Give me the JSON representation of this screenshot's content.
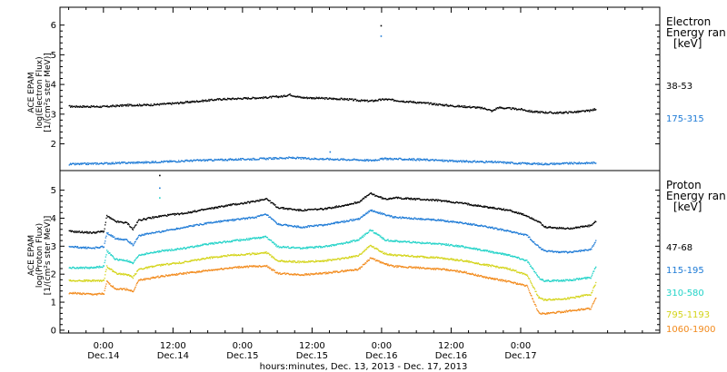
{
  "chart_data": [
    {
      "type": "scatter",
      "panel": "electron",
      "ylabel": [
        "ACE EPAM",
        "log(Electron Flux)",
        "[1/(cm²s ster MeV)]"
      ],
      "ylim": [
        1.1,
        6.6
      ],
      "yticks": [
        "2",
        "3",
        "4",
        "5",
        "6"
      ],
      "legend_title": [
        "Electron",
        "Energy ran",
        "[keV]"
      ],
      "legend_placement": "right",
      "series": [
        {
          "name": "38-53",
          "color": "#000000",
          "points": [
            [
              -6,
              3.28
            ],
            [
              0,
              3.27
            ],
            [
              4,
              3.32
            ],
            [
              8,
              3.33
            ],
            [
              12,
              3.38
            ],
            [
              16,
              3.45
            ],
            [
              20,
              3.52
            ],
            [
              24,
              3.55
            ],
            [
              28,
              3.58
            ],
            [
              31,
              3.62
            ],
            [
              32,
              3.68
            ],
            [
              34,
              3.58
            ],
            [
              38,
              3.55
            ],
            [
              42,
              3.52
            ],
            [
              44,
              3.48
            ],
            [
              46,
              3.46
            ],
            [
              48.5,
              3.52
            ],
            [
              52,
              3.45
            ],
            [
              56,
              3.38
            ],
            [
              60,
              3.3
            ],
            [
              64,
              3.25
            ],
            [
              66,
              3.2
            ],
            [
              67,
              3.12
            ],
            [
              68,
              3.24
            ],
            [
              72,
              3.18
            ],
            [
              74,
              3.1
            ],
            [
              78,
              3.06
            ],
            [
              82,
              3.1
            ],
            [
              84,
              3.14
            ],
            [
              85,
              3.2
            ]
          ]
        },
        {
          "name": "175-315",
          "color": "#1e7bd6",
          "points": [
            [
              -6,
              1.33
            ],
            [
              0,
              1.36
            ],
            [
              4,
              1.38
            ],
            [
              8,
              1.4
            ],
            [
              12,
              1.43
            ],
            [
              16,
              1.46
            ],
            [
              20,
              1.48
            ],
            [
              24,
              1.5
            ],
            [
              28,
              1.52
            ],
            [
              32,
              1.55
            ],
            [
              36,
              1.52
            ],
            [
              40,
              1.5
            ],
            [
              44,
              1.48
            ],
            [
              46,
              1.46
            ],
            [
              48.5,
              1.52
            ],
            [
              52,
              1.5
            ],
            [
              56,
              1.48
            ],
            [
              60,
              1.44
            ],
            [
              64,
              1.42
            ],
            [
              68,
              1.4
            ],
            [
              72,
              1.36
            ],
            [
              76,
              1.34
            ],
            [
              80,
              1.36
            ],
            [
              85,
              1.38
            ]
          ]
        }
      ],
      "outliers": [
        {
          "x": 47.8,
          "y": 6.0,
          "color": "#000000"
        },
        {
          "x": 47.8,
          "y": 5.65,
          "color": "#1e7bd6"
        },
        {
          "x": 39,
          "y": 1.75,
          "color": "#1e7bd6"
        }
      ]
    },
    {
      "type": "scatter",
      "panel": "proton",
      "ylabel": [
        "ACE EPAM",
        "log(Proton Flux)",
        "[1/(cm²s ster MeV)]"
      ],
      "ylim": [
        -0.1,
        5.7
      ],
      "yticks": [
        "0",
        "1",
        "2",
        "3",
        "4",
        "5"
      ],
      "legend_title": [
        "Proton",
        "Energy ran",
        "[keV]"
      ],
      "legend_placement": "right",
      "series": [
        {
          "name": "47-68",
          "color": "#000000",
          "points": [
            [
              -6,
              3.55
            ],
            [
              -2,
              3.5
            ],
            [
              0,
              3.55
            ],
            [
              0.5,
              4.1
            ],
            [
              2,
              3.9
            ],
            [
              4,
              3.85
            ],
            [
              5,
              3.62
            ],
            [
              6,
              3.95
            ],
            [
              10,
              4.1
            ],
            [
              14,
              4.2
            ],
            [
              18,
              4.35
            ],
            [
              22,
              4.5
            ],
            [
              24,
              4.55
            ],
            [
              26,
              4.62
            ],
            [
              28,
              4.72
            ],
            [
              30,
              4.4
            ],
            [
              34,
              4.3
            ],
            [
              38,
              4.35
            ],
            [
              42,
              4.5
            ],
            [
              44,
              4.6
            ],
            [
              46,
              4.9
            ],
            [
              48.5,
              4.7
            ],
            [
              50,
              4.75
            ],
            [
              54,
              4.7
            ],
            [
              58,
              4.65
            ],
            [
              62,
              4.55
            ],
            [
              66,
              4.42
            ],
            [
              70,
              4.3
            ],
            [
              73,
              4.1
            ],
            [
              75,
              3.9
            ],
            [
              76,
              3.7
            ],
            [
              80,
              3.65
            ],
            [
              84,
              3.75
            ],
            [
              85,
              3.92
            ]
          ]
        },
        {
          "name": "115-195",
          "color": "#1e7bd6",
          "points": [
            [
              -6,
              3.0
            ],
            [
              -2,
              2.95
            ],
            [
              0,
              3.0
            ],
            [
              0.5,
              3.5
            ],
            [
              2,
              3.3
            ],
            [
              4,
              3.25
            ],
            [
              5,
              3.05
            ],
            [
              6,
              3.4
            ],
            [
              10,
              3.55
            ],
            [
              14,
              3.7
            ],
            [
              18,
              3.85
            ],
            [
              22,
              3.95
            ],
            [
              24,
              4.0
            ],
            [
              26,
              4.05
            ],
            [
              28,
              4.15
            ],
            [
              30,
              3.8
            ],
            [
              34,
              3.7
            ],
            [
              38,
              3.78
            ],
            [
              42,
              3.92
            ],
            [
              44,
              4.0
            ],
            [
              46,
              4.3
            ],
            [
              48.5,
              4.15
            ],
            [
              50,
              4.05
            ],
            [
              54,
              4.0
            ],
            [
              58,
              3.95
            ],
            [
              62,
              3.85
            ],
            [
              66,
              3.72
            ],
            [
              70,
              3.55
            ],
            [
              73,
              3.4
            ],
            [
              75,
              3.0
            ],
            [
              76,
              2.85
            ],
            [
              80,
              2.8
            ],
            [
              84,
              2.9
            ],
            [
              85,
              3.25
            ]
          ]
        },
        {
          "name": "310-580",
          "color": "#22d3c8",
          "points": [
            [
              -6,
              2.25
            ],
            [
              -2,
              2.25
            ],
            [
              0,
              2.3
            ],
            [
              0.5,
              2.85
            ],
            [
              2,
              2.55
            ],
            [
              4,
              2.5
            ],
            [
              5,
              2.4
            ],
            [
              6,
              2.7
            ],
            [
              10,
              2.85
            ],
            [
              14,
              2.95
            ],
            [
              18,
              3.1
            ],
            [
              22,
              3.2
            ],
            [
              24,
              3.25
            ],
            [
              26,
              3.3
            ],
            [
              28,
              3.35
            ],
            [
              30,
              3.0
            ],
            [
              34,
              2.95
            ],
            [
              38,
              3.0
            ],
            [
              42,
              3.15
            ],
            [
              44,
              3.25
            ],
            [
              46,
              3.6
            ],
            [
              48.5,
              3.25
            ],
            [
              50,
              3.2
            ],
            [
              54,
              3.15
            ],
            [
              58,
              3.1
            ],
            [
              62,
              3.0
            ],
            [
              66,
              2.85
            ],
            [
              70,
              2.7
            ],
            [
              73,
              2.5
            ],
            [
              75,
              1.9
            ],
            [
              76,
              1.78
            ],
            [
              80,
              1.8
            ],
            [
              84,
              1.9
            ],
            [
              85,
              2.35
            ]
          ]
        },
        {
          "name": "795-1193",
          "color": "#d4d41a",
          "points": [
            [
              -6,
              1.8
            ],
            [
              -2,
              1.78
            ],
            [
              0,
              1.8
            ],
            [
              0.5,
              2.3
            ],
            [
              2,
              2.05
            ],
            [
              4,
              2.0
            ],
            [
              5,
              1.9
            ],
            [
              6,
              2.2
            ],
            [
              10,
              2.35
            ],
            [
              14,
              2.45
            ],
            [
              18,
              2.6
            ],
            [
              22,
              2.7
            ],
            [
              24,
              2.72
            ],
            [
              26,
              2.75
            ],
            [
              28,
              2.8
            ],
            [
              30,
              2.5
            ],
            [
              34,
              2.45
            ],
            [
              38,
              2.5
            ],
            [
              42,
              2.6
            ],
            [
              44,
              2.7
            ],
            [
              46,
              3.05
            ],
            [
              48.5,
              2.75
            ],
            [
              50,
              2.7
            ],
            [
              54,
              2.65
            ],
            [
              58,
              2.6
            ],
            [
              62,
              2.5
            ],
            [
              66,
              2.35
            ],
            [
              70,
              2.2
            ],
            [
              73,
              2.0
            ],
            [
              75,
              1.2
            ],
            [
              76,
              1.1
            ],
            [
              80,
              1.15
            ],
            [
              84,
              1.3
            ],
            [
              85,
              1.75
            ]
          ]
        },
        {
          "name": "1060-1900",
          "color": "#f28a1c",
          "points": [
            [
              -6,
              1.35
            ],
            [
              -2,
              1.3
            ],
            [
              0,
              1.32
            ],
            [
              0.5,
              1.75
            ],
            [
              2,
              1.5
            ],
            [
              4,
              1.48
            ],
            [
              5,
              1.4
            ],
            [
              6,
              1.8
            ],
            [
              10,
              1.95
            ],
            [
              14,
              2.05
            ],
            [
              18,
              2.15
            ],
            [
              22,
              2.25
            ],
            [
              24,
              2.28
            ],
            [
              26,
              2.3
            ],
            [
              28,
              2.32
            ],
            [
              30,
              2.05
            ],
            [
              34,
              2.0
            ],
            [
              38,
              2.05
            ],
            [
              42,
              2.15
            ],
            [
              44,
              2.2
            ],
            [
              46,
              2.6
            ],
            [
              48.5,
              2.38
            ],
            [
              50,
              2.3
            ],
            [
              54,
              2.25
            ],
            [
              58,
              2.2
            ],
            [
              62,
              2.1
            ],
            [
              66,
              1.9
            ],
            [
              70,
              1.75
            ],
            [
              73,
              1.6
            ],
            [
              75,
              0.65
            ],
            [
              76,
              0.6
            ],
            [
              80,
              0.7
            ],
            [
              84,
              0.8
            ],
            [
              85,
              1.2
            ]
          ]
        }
      ],
      "outliers": [
        {
          "x": 9.6,
          "y": 5.55,
          "color": "#000000"
        },
        {
          "x": 9.6,
          "y": 5.1,
          "color": "#1e7bd6"
        },
        {
          "x": 9.6,
          "y": 4.75,
          "color": "#22d3c8"
        }
      ]
    }
  ],
  "x_axis": {
    "xlim": [
      -7.5,
      96
    ],
    "ticks": [
      {
        "x": 0,
        "time": "0:00",
        "date": "Dec.14"
      },
      {
        "x": 12,
        "time": "12:00",
        "date": "Dec.14"
      },
      {
        "x": 24,
        "time": "0:00",
        "date": "Dec.15"
      },
      {
        "x": 36,
        "time": "12:00",
        "date": "Dec.15"
      },
      {
        "x": 48,
        "time": "0:00",
        "date": "Dec.16"
      },
      {
        "x": 60,
        "time": "12:00",
        "date": "Dec.16"
      },
      {
        "x": 72,
        "time": "0:00",
        "date": "Dec.17"
      }
    ],
    "xlabel": "hours:minutes, Dec. 13, 2013 - Dec. 17, 2013"
  }
}
